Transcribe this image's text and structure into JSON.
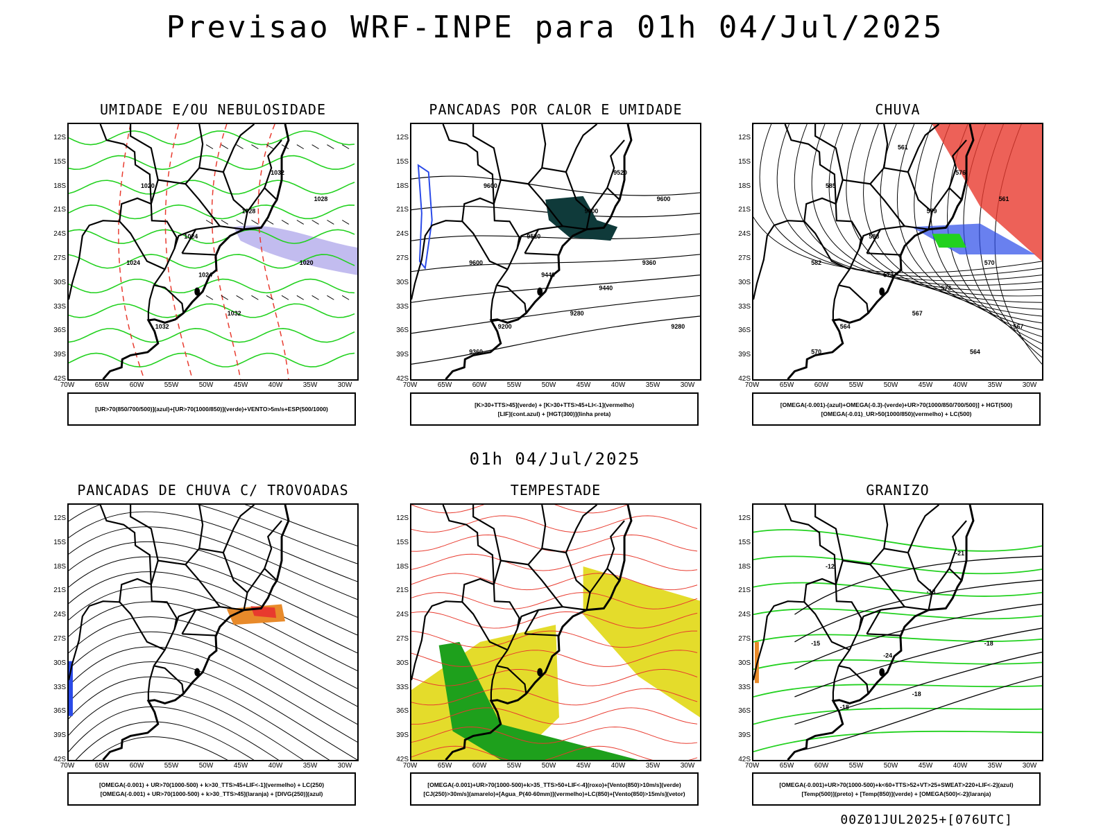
{
  "title": "Previsao WRF-INPE  para 01h 04/Jul/2025",
  "mid_title": "01h 04/Jul/2025",
  "footer": "00Z01JUL2025+[076UTC]",
  "lat_labels": [
    "12S",
    "15S",
    "18S",
    "21S",
    "24S",
    "27S",
    "30S",
    "33S",
    "36S",
    "39S",
    "42S"
  ],
  "lon_labels": [
    "70W",
    "65W",
    "60W",
    "55W",
    "50W",
    "45W",
    "40W",
    "35W",
    "30W"
  ],
  "colors": {
    "red": "#e83a2e",
    "green": "#22d11f",
    "blue": "#2a4ae8",
    "dark": "#0f3a3a",
    "yellow": "#e4dc2b",
    "orange": "#e88a2a",
    "lavender": "#b7b0ec"
  },
  "panels": [
    {
      "title": "UMIDADE E/OU NEBULOSIDADE",
      "legend1": "[UR>70(850/700/500)](azul)+[UR>70(1000/850)](verde)+VENTO>5m/s+ESP(500/1000)",
      "legend2": "",
      "contour_labels": [
        "1020",
        "1024",
        "1028",
        "1032",
        "1024",
        "1020",
        "1032",
        "1032",
        "1028",
        "1024"
      ]
    },
    {
      "title": "PANCADAS POR CALOR E UMIDADE",
      "legend1": "[K>30+TTS>45](verde) + [K>30+TTS>45+LI<-1](vermelho)",
      "legend2": "[LIF](cont.azul) + [HGT(300)](linha preta)",
      "contour_labels": [
        "9600",
        "9600",
        "9600",
        "9520",
        "9440",
        "9360",
        "9280",
        "9200",
        "9600",
        "9520",
        "9440",
        "9360",
        "9280"
      ]
    },
    {
      "title": "CHUVA",
      "legend1": "[OMEGA(-0.001)-(azul)+OMEGA(-0.3)-(verde)+UR>70(1000/850/700/500)] + HGT(500)",
      "legend2": "[OMEGA(-0.01)_UR>50(1000/850)(vermelho) + LC(500)",
      "contour_labels": [
        "585",
        "582",
        "579",
        "576",
        "573",
        "570",
        "567",
        "564",
        "561",
        "588",
        "573",
        "570",
        "567",
        "564",
        "561"
      ]
    },
    {
      "title": "PANCADAS DE CHUVA C/ TROVOADAS",
      "legend1": "[OMEGA(-0.001) + UR>70(1000-500) + k>30_TTS>45+LIF<-1](vermelho) + LC(250)",
      "legend2": "[OMEGA(-0.001) + UR>70(1000-500) + k>30_TTS>45](laranja) + [DIVG(250)](azul)",
      "contour_labels": []
    },
    {
      "title": "TEMPESTADE",
      "legend1": "[OMEGA(-0.001)+UR>70(1000-500)+k>35_TTS>50+LIF<-4](roxo)+[Vento(850)>10m/s](verde)",
      "legend2": "[CJ(250)>30m/s](amarelo)+[Agua_P(40-60mm)](vermelho)+LC(850)+[Vento(850)>15m/s](vetor)",
      "contour_labels": []
    },
    {
      "title": "GRANIZO",
      "legend1": "[OMEGA(-0.001)+UR>70(1000-500)+k<60+TTS>52+VT>25+SWEAT>220+LIF<-2](azul)",
      "legend2": "[Temp(500)](preto) + [Temp(850)](verde) + [OMEGA(500)<-2](laranja)",
      "contour_labels": [
        "-12",
        "-15",
        "-18",
        "-21",
        "-24",
        "-18",
        "-18",
        "-18"
      ]
    }
  ]
}
